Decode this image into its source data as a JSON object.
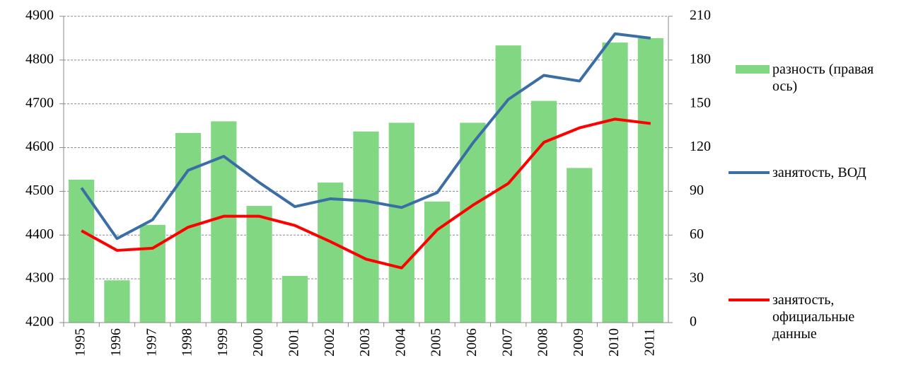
{
  "chart_data": {
    "type": "combo",
    "categories": [
      "1995",
      "1996",
      "1997",
      "1998",
      "1999",
      "2000",
      "2001",
      "2002",
      "2003",
      "2004",
      "2005",
      "2006",
      "2007",
      "2008",
      "2009",
      "2010",
      "2011"
    ],
    "series": [
      {
        "name": "разность (правая ось)",
        "type": "bar",
        "axis": "y2",
        "color": "#82d882",
        "values": [
          98,
          29,
          67,
          130,
          138,
          80,
          32,
          96,
          131,
          137,
          83,
          137,
          190,
          152,
          106,
          192,
          195
        ]
      },
      {
        "name": "занятость, ВОД",
        "type": "line",
        "color": "#3a6ea5",
        "values": [
          4508,
          4392,
          4435,
          4548,
          4580,
          4520,
          4465,
          4483,
          4478,
          4463,
          4497,
          4610,
          4710,
          4765,
          4752,
          4860,
          4850
        ]
      },
      {
        "name": "занятость, официальные данные",
        "type": "line",
        "color": "#ff0000",
        "values": [
          4410,
          4365,
          4370,
          4418,
          4443,
          4443,
          4422,
          4385,
          4345,
          4325,
          4412,
          4468,
          4518,
          4612,
          4645,
          4665,
          4655
        ]
      }
    ],
    "ylim": [
      4200,
      4900
    ],
    "yticks": [
      4200,
      4300,
      4400,
      4500,
      4600,
      4700,
      4800,
      4900
    ],
    "y2lim": [
      0,
      210
    ],
    "y2ticks": [
      0,
      30,
      60,
      90,
      120,
      150,
      180,
      210
    ],
    "grid": true,
    "legend": "right"
  }
}
